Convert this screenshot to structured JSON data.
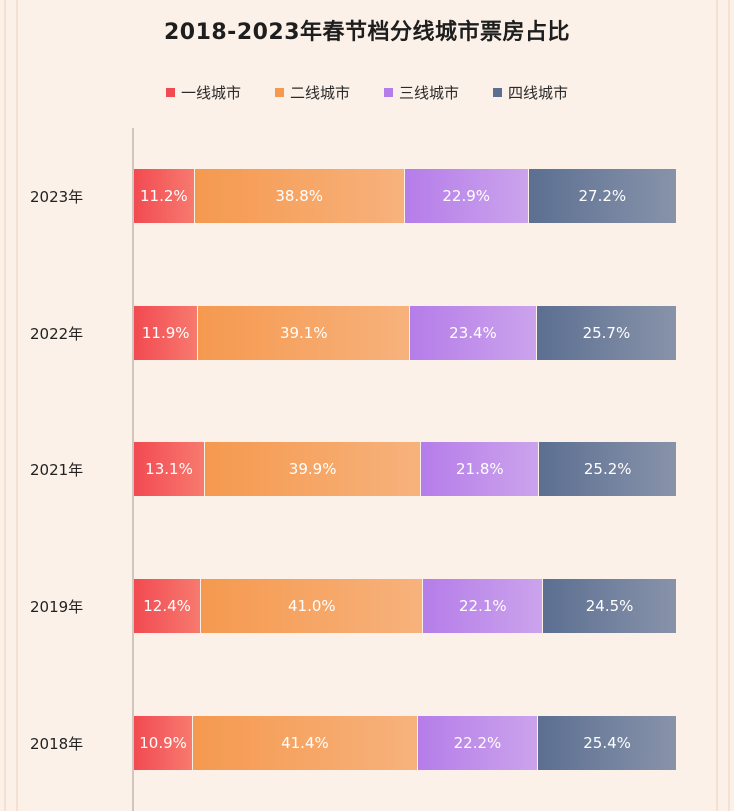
{
  "chart_data": {
    "type": "bar",
    "orientation": "horizontal",
    "stacked": true,
    "title": "2018-2023年春节档分线城市票房占比",
    "categories": [
      "2023年",
      "2022年",
      "2021年",
      "2019年",
      "2018年"
    ],
    "series": [
      {
        "name": "一线城市",
        "values": [
          11.2,
          11.9,
          13.1,
          12.4,
          10.9
        ],
        "labels": [
          "11.2%",
          "11.9%",
          "13.1%",
          "12.4%",
          "10.9%"
        ],
        "color_from": "#f24a52",
        "color_to": "#f77a6e"
      },
      {
        "name": "二线城市",
        "values": [
          38.8,
          39.1,
          39.9,
          41.0,
          41.4
        ],
        "labels": [
          "38.8%",
          "39.1%",
          "39.9%",
          "41.0%",
          "41.4%"
        ],
        "color_from": "#f5994f",
        "color_to": "#f7b27c"
      },
      {
        "name": "三线城市",
        "values": [
          22.9,
          23.4,
          21.8,
          22.1,
          22.2
        ],
        "labels": [
          "22.9%",
          "23.4%",
          "21.8%",
          "22.1%",
          "22.2%"
        ],
        "color_from": "#b57de9",
        "color_to": "#cba3ec"
      },
      {
        "name": "四线城市",
        "values": [
          27.2,
          25.7,
          25.2,
          24.5,
          25.4
        ],
        "labels": [
          "27.2%",
          "25.7%",
          "25.2%",
          "24.5%",
          "25.4%"
        ],
        "color_from": "#5c6f91",
        "color_to": "#8893aa"
      }
    ],
    "xlim": [
      0,
      100
    ],
    "xlabel": "",
    "ylabel": "",
    "legend_position": "top-center",
    "grid": false
  }
}
